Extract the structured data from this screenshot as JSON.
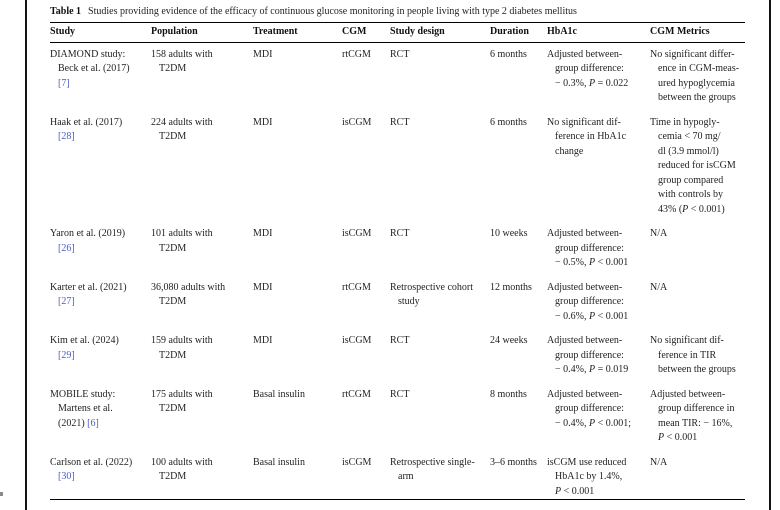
{
  "page": {
    "caption_label": "Table 1",
    "caption_text": "Studies providing evidence of the efficacy of continuous glucose monitoring in people living with type 2 diabetes mellitus",
    "link_color": "#4c5bc0",
    "text_color": "#1f1f1f",
    "rule_color": "#000000"
  },
  "table": {
    "columns": [
      "Study",
      "Population",
      "Treatment",
      "CGM",
      "Study design",
      "Duration",
      "HbA1c",
      "CGM Metrics"
    ],
    "rows": [
      {
        "study": "DIAMOND study:\nBeck et al. (2017)\n",
        "ref": "[7]",
        "population": "158 adults with\nT2DM",
        "treatment": "MDI",
        "cgm": "rtCGM",
        "design": "RCT",
        "duration": "6 months",
        "hba1c": "Adjusted between-\ngroup difference:\n− 0.3%, P = 0.022",
        "metrics": "No significant differ-\nence in CGM-meas-\nured hypoglycemia\nbetween the groups"
      },
      {
        "study": "Haak et al. (2017)\n",
        "ref": "[28]",
        "population": "224 adults with\nT2DM",
        "treatment": "MDI",
        "cgm": "isCGM",
        "design": "RCT",
        "duration": "6 months",
        "hba1c": "No significant dif-\nference in HbA1c\nchange",
        "metrics": "Time in hypogly-\ncemia < 70 mg/\ndl (3.9 mmol/l)\nreduced for isCGM\ngroup compared\nwith controls by\n43% (P < 0.001)"
      },
      {
        "study": "Yaron et al. (2019)\n",
        "ref": "[26]",
        "population": "101 adults with\nT2DM",
        "treatment": "MDI",
        "cgm": "isCGM",
        "design": "RCT",
        "duration": "10 weeks",
        "hba1c": "Adjusted between-\ngroup difference:\n− 0.5%, P < 0.001",
        "metrics": "N/A"
      },
      {
        "study": "Karter et al. (2021)\n",
        "ref": "[27]",
        "population": "36,080 adults with\nT2DM",
        "treatment": "MDI",
        "cgm": "rtCGM",
        "design": "Retrospective cohort\nstudy",
        "duration": "12 months",
        "hba1c": "Adjusted between-\ngroup difference:\n− 0.6%, P < 0.001",
        "metrics": "N/A"
      },
      {
        "study": "Kim et al. (2024)\n",
        "ref": "[29]",
        "population": "159 adults with\nT2DM",
        "treatment": "MDI",
        "cgm": "isCGM",
        "design": "RCT",
        "duration": "24 weeks",
        "hba1c": "Adjusted between-\ngroup difference:\n− 0.4%, P = 0.019",
        "metrics": "No significant dif-\nference in TIR\nbetween the groups"
      },
      {
        "study": "MOBILE study:\nMartens et al.\n(2021) ",
        "ref": "[6]",
        "population": "175 adults with\nT2DM",
        "treatment": "Basal insulin",
        "cgm": "rtCGM",
        "design": "RCT",
        "duration": "8 months",
        "hba1c": "Adjusted between-\ngroup difference:\n− 0.4%, P < 0.001;",
        "metrics": "Adjusted between-\ngroup difference in\nmean TIR: − 16%,\nP < 0.001"
      },
      {
        "study": "Carlson et al. (2022)\n",
        "ref": "[30]",
        "population": "100 adults with\nT2DM",
        "treatment": "Basal insulin",
        "cgm": "isCGM",
        "design": "Retrospective single-\narm",
        "duration": "3–6 months",
        "hba1c": "isCGM use reduced\nHbA1c by 1.4%,\nP < 0.001",
        "metrics": "N/A"
      }
    ]
  }
}
